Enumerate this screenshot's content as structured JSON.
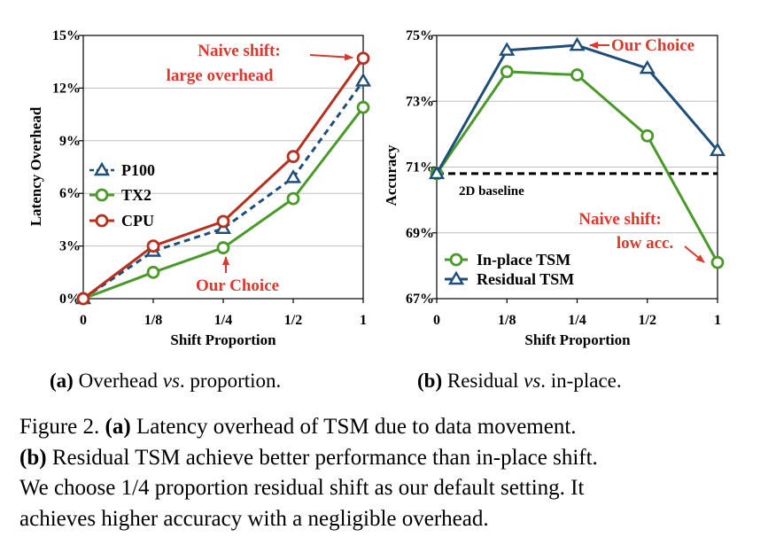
{
  "colors": {
    "blue": "#1f4e79",
    "green": "#4a9a2a",
    "red": "#b8301f",
    "annotation": "#d93a2b",
    "grid": "#bfbfbf"
  },
  "subcaptions": {
    "a": {
      "tag": "(a)",
      "pre": " Overhead ",
      "em": "vs",
      "post": ". proportion."
    },
    "b": {
      "tag": "(b)",
      "pre": " Residual ",
      "em": "vs",
      "post": ". in-place."
    }
  },
  "caption": {
    "line1_pre": "Figure 2. ",
    "line1_bold": "(a)",
    "line1_post": " Latency overhead of TSM due to data movement.",
    "line2_bold": "(b)",
    "line2_post": " Residual TSM achieve better performance than in-place shift.",
    "line3": "We choose 1/4 proportion residual shift as our default setting. It",
    "line4": "achieves higher accuracy with a negligible overhead."
  },
  "chart_data": [
    {
      "type": "line",
      "categories": [
        "0",
        "1/8",
        "1/4",
        "1/2",
        "1"
      ],
      "xlabel": "Shift Proportion",
      "ylabel": "Latency Overhead",
      "ylim": [
        0,
        15
      ],
      "yticks": [
        0,
        3,
        6,
        9,
        12,
        15
      ],
      "ytick_labels": [
        "0%",
        "3%",
        "6%",
        "9%",
        "12%",
        "15%"
      ],
      "grid": true,
      "legend_position": "left",
      "series": [
        {
          "name": "P100",
          "color": "#1f4e79",
          "marker": "triangle",
          "dashed": true,
          "values": [
            0,
            2.7,
            4.0,
            6.9,
            12.4
          ]
        },
        {
          "name": "TX2",
          "color": "#4a9a2a",
          "marker": "circle",
          "dashed": false,
          "values": [
            0,
            1.5,
            2.9,
            5.7,
            10.9
          ]
        },
        {
          "name": "CPU",
          "color": "#b8301f",
          "marker": "circle",
          "dashed": false,
          "values": [
            0,
            3.0,
            4.4,
            8.1,
            13.7
          ]
        }
      ],
      "annotations": {
        "naive_line1": "Naive shift:",
        "naive_line2": "large overhead",
        "choice": "Our Choice"
      }
    },
    {
      "type": "line",
      "categories": [
        "0",
        "1/8",
        "1/4",
        "1/2",
        "1"
      ],
      "xlabel": "Shift Proportion",
      "ylabel": "Accuracy",
      "ylim": [
        67,
        75
      ],
      "yticks": [
        67,
        69,
        71,
        73,
        75
      ],
      "ytick_labels": [
        "67%",
        "69%",
        "71%",
        "73%",
        "75%"
      ],
      "grid": true,
      "legend_position": "bottom-left",
      "baseline": {
        "label": "2D baseline",
        "value": 70.8
      },
      "series": [
        {
          "name": "In-place TSM",
          "color": "#4a9a2a",
          "marker": "circle",
          "values": [
            70.8,
            73.9,
            73.8,
            71.95,
            68.1
          ]
        },
        {
          "name": "Residual TSM",
          "color": "#1f4e79",
          "marker": "triangle",
          "values": [
            70.8,
            74.55,
            74.7,
            74.0,
            71.5
          ]
        }
      ],
      "annotations": {
        "choice": "Our Choice",
        "naive_line1": "Naive shift:",
        "naive_line2": "low acc."
      }
    }
  ]
}
